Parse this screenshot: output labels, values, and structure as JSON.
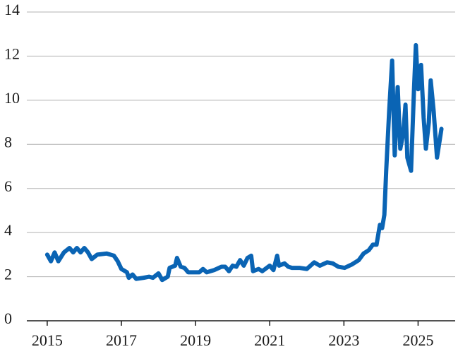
{
  "chart_data": {
    "type": "line",
    "x": [
      2015.0,
      2015.1,
      2015.2,
      2015.3,
      2015.45,
      2015.6,
      2015.7,
      2015.8,
      2015.9,
      2016.0,
      2016.1,
      2016.2,
      2016.35,
      2016.6,
      2016.8,
      2016.9,
      2017.0,
      2017.15,
      2017.2,
      2017.3,
      2017.4,
      2017.6,
      2017.75,
      2017.85,
      2018.0,
      2018.1,
      2018.25,
      2018.3,
      2018.45,
      2018.5,
      2018.6,
      2018.7,
      2018.8,
      2019.0,
      2019.1,
      2019.2,
      2019.3,
      2019.5,
      2019.7,
      2019.8,
      2019.9,
      2020.0,
      2020.1,
      2020.2,
      2020.3,
      2020.4,
      2020.5,
      2020.55,
      2020.7,
      2020.8,
      2021.0,
      2021.1,
      2021.2,
      2021.25,
      2021.4,
      2021.5,
      2021.6,
      2021.8,
      2022.0,
      2022.2,
      2022.35,
      2022.55,
      2022.7,
      2022.85,
      2023.02,
      2023.21,
      2023.4,
      2023.53,
      2023.67,
      2023.78,
      2023.88,
      2023.97,
      2024.03,
      2024.09,
      2024.14,
      2024.22,
      2024.3,
      2024.37,
      2024.45,
      2024.52,
      2024.6,
      2024.66,
      2024.71,
      2024.81,
      2024.89,
      2024.94,
      2025.0,
      2025.08,
      2025.15,
      2025.21,
      2025.29,
      2025.34,
      2025.42,
      2025.51,
      2025.63
    ],
    "series": [
      {
        "color": "#0a64b4",
        "values": [
          3.0,
          2.7,
          3.1,
          2.7,
          3.1,
          3.3,
          3.1,
          3.3,
          3.1,
          3.3,
          3.1,
          2.8,
          3.0,
          3.05,
          2.95,
          2.7,
          2.35,
          2.2,
          1.95,
          2.1,
          1.9,
          1.95,
          2.0,
          1.95,
          2.15,
          1.85,
          2.0,
          2.4,
          2.5,
          2.85,
          2.45,
          2.4,
          2.2,
          2.2,
          2.2,
          2.35,
          2.2,
          2.3,
          2.45,
          2.45,
          2.25,
          2.5,
          2.45,
          2.75,
          2.5,
          2.85,
          2.95,
          2.25,
          2.35,
          2.25,
          2.5,
          2.3,
          2.95,
          2.5,
          2.6,
          2.45,
          2.4,
          2.4,
          2.35,
          2.65,
          2.5,
          2.65,
          2.6,
          2.45,
          2.4,
          2.55,
          2.75,
          3.05,
          3.2,
          3.45,
          3.45,
          4.35,
          4.2,
          4.8,
          6.8,
          9.5,
          11.8,
          7.5,
          10.6,
          7.8,
          8.5,
          9.8,
          7.4,
          6.8,
          10.5,
          12.5,
          10.5,
          11.6,
          9.2,
          7.8,
          9.0,
          10.9,
          9.5,
          7.4,
          8.7
        ]
      }
    ],
    "xlim": [
      2014.45,
      2026.0
    ],
    "xticks": [
      2015,
      2017,
      2019,
      2021,
      2023,
      2025
    ],
    "ylim": [
      0,
      14
    ],
    "yticks": [
      0,
      2,
      4,
      6,
      8,
      10,
      12,
      14
    ],
    "grid": true
  }
}
